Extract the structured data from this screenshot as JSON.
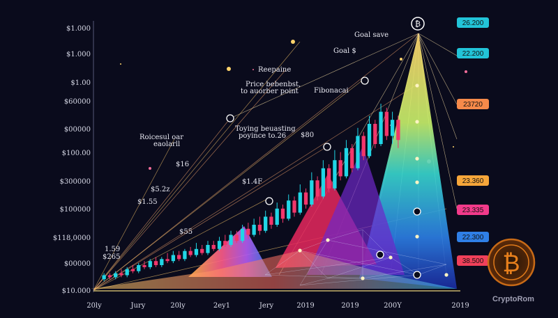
{
  "chart_data": {
    "type": "candlestick",
    "title": "",
    "xlabel": "",
    "ylabel": "",
    "y_tick_labels": [
      "$1.000",
      "$1.000",
      "$1.00",
      "$60000",
      "$00000",
      "$100.00",
      "$300000",
      "$100000",
      "$118,0000",
      "$00000",
      "$10.000"
    ],
    "x_tick_labels": [
      "20ly",
      "Jury",
      "20ly",
      "2ey1",
      "Jery",
      "2019",
      "2019",
      "200Y",
      "2019"
    ],
    "price_tags": [
      {
        "text": "26.200",
        "color": "#22c4d8"
      },
      {
        "text": "22.200",
        "color": "#22c4d8"
      },
      {
        "text": "23720",
        "color": "#f68a4a"
      },
      {
        "text": "23.360",
        "color": "#f6a63a"
      },
      {
        "text": "23.335",
        "color": "#f23a8a"
      },
      {
        "text": "22.300",
        "color": "#2f7fe6"
      },
      {
        "text": "38.500",
        "color": "#f0405a"
      }
    ],
    "annotations": [
      "Goal save",
      "Goal $",
      "Reepaine",
      "Price bebenbst,",
      "to auorber point",
      "Fibonacai",
      "Roicesul oar",
      "eaolarll",
      "Toying beuasting",
      "poyince to.26",
      "$80",
      "$16",
      "$5.2z",
      "$1.4F",
      "$1.55",
      "$55",
      "1.59",
      "$265"
    ],
    "candles": [
      {
        "o": 0.03,
        "c": 0.05,
        "h": 0.06,
        "l": 0.02
      },
      {
        "o": 0.05,
        "c": 0.04,
        "h": 0.06,
        "l": 0.03
      },
      {
        "o": 0.04,
        "c": 0.06,
        "h": 0.07,
        "l": 0.03
      },
      {
        "o": 0.06,
        "c": 0.05,
        "h": 0.08,
        "l": 0.04
      },
      {
        "o": 0.05,
        "c": 0.08,
        "h": 0.09,
        "l": 0.04
      },
      {
        "o": 0.08,
        "c": 0.07,
        "h": 0.1,
        "l": 0.06
      },
      {
        "o": 0.07,
        "c": 0.1,
        "h": 0.11,
        "l": 0.06
      },
      {
        "o": 0.1,
        "c": 0.09,
        "h": 0.12,
        "l": 0.08
      },
      {
        "o": 0.09,
        "c": 0.12,
        "h": 0.13,
        "l": 0.08
      },
      {
        "o": 0.12,
        "c": 0.1,
        "h": 0.14,
        "l": 0.09
      },
      {
        "o": 0.1,
        "c": 0.13,
        "h": 0.14,
        "l": 0.09
      },
      {
        "o": 0.13,
        "c": 0.12,
        "h": 0.16,
        "l": 0.11
      },
      {
        "o": 0.12,
        "c": 0.15,
        "h": 0.17,
        "l": 0.11
      },
      {
        "o": 0.15,
        "c": 0.13,
        "h": 0.17,
        "l": 0.12
      },
      {
        "o": 0.13,
        "c": 0.17,
        "h": 0.18,
        "l": 0.12
      },
      {
        "o": 0.17,
        "c": 0.15,
        "h": 0.19,
        "l": 0.14
      },
      {
        "o": 0.15,
        "c": 0.18,
        "h": 0.21,
        "l": 0.14
      },
      {
        "o": 0.18,
        "c": 0.16,
        "h": 0.2,
        "l": 0.15
      },
      {
        "o": 0.16,
        "c": 0.2,
        "h": 0.22,
        "l": 0.15
      },
      {
        "o": 0.2,
        "c": 0.18,
        "h": 0.22,
        "l": 0.17
      },
      {
        "o": 0.18,
        "c": 0.22,
        "h": 0.24,
        "l": 0.17
      },
      {
        "o": 0.22,
        "c": 0.2,
        "h": 0.25,
        "l": 0.19
      },
      {
        "o": 0.2,
        "c": 0.25,
        "h": 0.27,
        "l": 0.19
      },
      {
        "o": 0.25,
        "c": 0.22,
        "h": 0.27,
        "l": 0.21
      },
      {
        "o": 0.22,
        "c": 0.28,
        "h": 0.3,
        "l": 0.21
      },
      {
        "o": 0.28,
        "c": 0.25,
        "h": 0.31,
        "l": 0.23
      },
      {
        "o": 0.25,
        "c": 0.3,
        "h": 0.33,
        "l": 0.24
      },
      {
        "o": 0.3,
        "c": 0.27,
        "h": 0.34,
        "l": 0.25
      },
      {
        "o": 0.27,
        "c": 0.34,
        "h": 0.37,
        "l": 0.26
      },
      {
        "o": 0.34,
        "c": 0.3,
        "h": 0.36,
        "l": 0.28
      },
      {
        "o": 0.3,
        "c": 0.38,
        "h": 0.41,
        "l": 0.29
      },
      {
        "o": 0.38,
        "c": 0.33,
        "h": 0.4,
        "l": 0.31
      },
      {
        "o": 0.33,
        "c": 0.42,
        "h": 0.45,
        "l": 0.32
      },
      {
        "o": 0.42,
        "c": 0.36,
        "h": 0.44,
        "l": 0.34
      },
      {
        "o": 0.36,
        "c": 0.46,
        "h": 0.5,
        "l": 0.35
      },
      {
        "o": 0.46,
        "c": 0.4,
        "h": 0.48,
        "l": 0.38
      },
      {
        "o": 0.4,
        "c": 0.52,
        "h": 0.56,
        "l": 0.39
      },
      {
        "o": 0.52,
        "c": 0.44,
        "h": 0.54,
        "l": 0.42
      },
      {
        "o": 0.44,
        "c": 0.58,
        "h": 0.62,
        "l": 0.43
      },
      {
        "o": 0.58,
        "c": 0.48,
        "h": 0.6,
        "l": 0.46
      },
      {
        "o": 0.48,
        "c": 0.62,
        "h": 0.67,
        "l": 0.47
      },
      {
        "o": 0.62,
        "c": 0.54,
        "h": 0.66,
        "l": 0.52
      },
      {
        "o": 0.54,
        "c": 0.68,
        "h": 0.72,
        "l": 0.53
      },
      {
        "o": 0.68,
        "c": 0.58,
        "h": 0.7,
        "l": 0.56
      },
      {
        "o": 0.58,
        "c": 0.74,
        "h": 0.78,
        "l": 0.57
      },
      {
        "o": 0.74,
        "c": 0.64,
        "h": 0.76,
        "l": 0.62
      },
      {
        "o": 0.64,
        "c": 0.8,
        "h": 0.84,
        "l": 0.63
      },
      {
        "o": 0.8,
        "c": 0.7,
        "h": 0.82,
        "l": 0.68
      },
      {
        "o": 0.7,
        "c": 0.86,
        "h": 0.9,
        "l": 0.69
      },
      {
        "o": 0.86,
        "c": 0.74,
        "h": 0.88,
        "l": 0.72
      },
      {
        "o": 0.74,
        "c": 0.82,
        "h": 0.86,
        "l": 0.7
      },
      {
        "o": 0.82,
        "c": 0.72,
        "h": 0.84,
        "l": 0.68
      }
    ],
    "colors": {
      "up": "#21d6e6",
      "down": "#f2366b"
    },
    "watermark": "CryptoRom"
  }
}
